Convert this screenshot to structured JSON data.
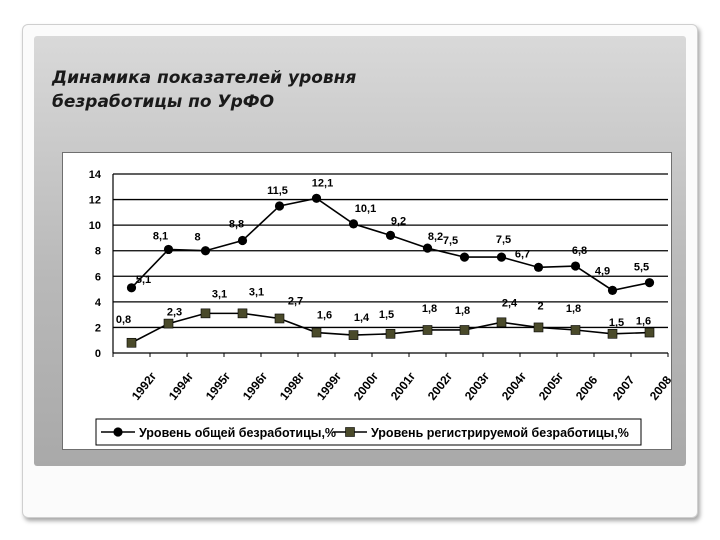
{
  "title_lines": [
    "Динамика показателей уровня",
    "безработицы по УрФО"
  ],
  "colors": {
    "series_line": "#000000",
    "total_marker": "#000000",
    "registered_marker": "#4a4a2a",
    "grid": "#000000"
  },
  "chart_data": {
    "type": "line",
    "categories": [
      "1992г",
      "1994г",
      "1995г",
      "1996г",
      "1998г",
      "1999г",
      "2000г",
      "2001г",
      "2002г",
      "2003г",
      "2004г",
      "2005г",
      "2006",
      "2007",
      "2008"
    ],
    "ylim": [
      0,
      14
    ],
    "yticks": [
      0,
      2,
      4,
      6,
      8,
      10,
      12,
      14
    ],
    "grid": "horizontal",
    "legend_position": "bottom",
    "series": [
      {
        "name": "Уровень общей безработицы,%",
        "marker": "circle",
        "values": [
          5.1,
          8.1,
          8,
          8.8,
          11.5,
          12.1,
          10.1,
          9.2,
          8.2,
          7.5,
          7.5,
          6.7,
          6.8,
          4.9,
          5.5
        ],
        "labels": [
          "5,1",
          "8,1",
          "8",
          "8,8",
          "11,5",
          "12,1",
          "10,1",
          "9,2",
          "8,2",
          "7,5",
          "7,5",
          "6,7",
          "6,8",
          "4,9",
          "5,5"
        ]
      },
      {
        "name": "Уровень регистрируемой безработицы,%",
        "marker": "square",
        "values": [
          0.8,
          2.3,
          3.1,
          3.1,
          2.7,
          1.6,
          1.4,
          1.5,
          1.8,
          1.8,
          2.4,
          2,
          1.8,
          1.5,
          1.6
        ],
        "labels": [
          "0,8",
          "2,3",
          "3,1",
          "3,1",
          "2,7",
          "1,6",
          "1,4",
          "1,5",
          "1,8",
          "1,8",
          "2,4",
          "2",
          "1,8",
          "1,5",
          "1,6"
        ]
      }
    ]
  }
}
